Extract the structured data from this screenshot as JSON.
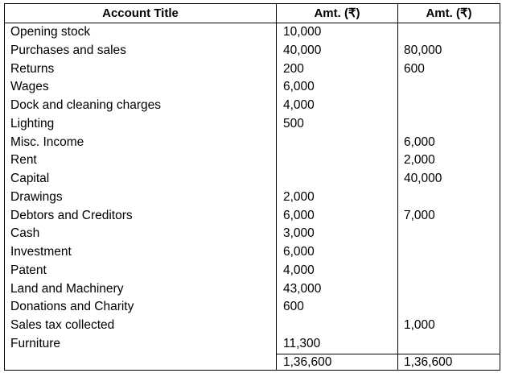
{
  "headers": [
    "Account Title",
    "Amt. (₹)",
    "Amt. (₹)"
  ],
  "rows": [
    {
      "title": "Opening stock",
      "debit": "10,000",
      "credit": ""
    },
    {
      "title": "Purchases and sales",
      "debit": "40,000",
      "credit": "80,000"
    },
    {
      "title": "Returns",
      "debit": "200",
      "credit": "600"
    },
    {
      "title": "Wages",
      "debit": "6,000",
      "credit": ""
    },
    {
      "title": "Dock and cleaning charges",
      "debit": "4,000",
      "credit": ""
    },
    {
      "title": "Lighting",
      "debit": "500",
      "credit": ""
    },
    {
      "title": "Misc. Income",
      "debit": "",
      "credit": "6,000"
    },
    {
      "title": "Rent",
      "debit": "",
      "credit": "2,000"
    },
    {
      "title": "Capital",
      "debit": "",
      "credit": "40,000"
    },
    {
      "title": "Drawings",
      "debit": "2,000",
      "credit": ""
    },
    {
      "title": "Debtors and Creditors",
      "debit": "6,000",
      "credit": "7,000"
    },
    {
      "title": "Cash",
      "debit": "3,000",
      "credit": ""
    },
    {
      "title": "Investment",
      "debit": "6,000",
      "credit": ""
    },
    {
      "title": "Patent",
      "debit": "4,000",
      "credit": ""
    },
    {
      "title": "Land and Machinery",
      "debit": "43,000",
      "credit": ""
    },
    {
      "title": "Donations and Charity",
      "debit": "600",
      "credit": ""
    },
    {
      "title": "Sales tax collected",
      "debit": "",
      "credit": "1,000"
    },
    {
      "title": "Furniture",
      "debit": "11,300",
      "credit": ""
    }
  ],
  "totals": {
    "debit": "1,36,600",
    "credit": "1,36,600"
  }
}
